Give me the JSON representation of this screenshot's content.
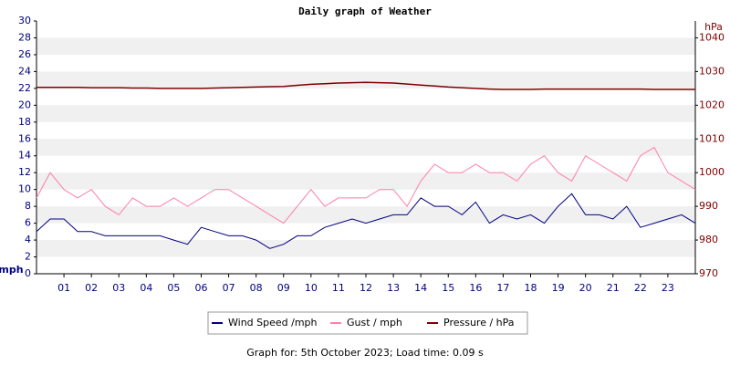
{
  "chart_data": {
    "type": "line",
    "title": "Daily graph of Weather",
    "y_label": "mph",
    "y2_label": "hPa",
    "footer": "Graph for: 5th October 2023; Load time: 0.09 s",
    "x": [
      0,
      0.5,
      1,
      1.5,
      2,
      2.5,
      3,
      3.5,
      4,
      4.5,
      5,
      5.5,
      6,
      6.5,
      7,
      7.5,
      8,
      8.5,
      9,
      9.5,
      10,
      10.5,
      11,
      11.5,
      12,
      12.5,
      13,
      13.5,
      14,
      14.5,
      15,
      15.5,
      16,
      16.5,
      17,
      17.5,
      18,
      18.5,
      19,
      19.5,
      20,
      20.5,
      21,
      21.5,
      22,
      22.5,
      23,
      23.5,
      24
    ],
    "xlim": [
      0,
      24
    ],
    "xticks": [
      {
        "value": 1,
        "label": "01"
      },
      {
        "value": 2,
        "label": "02"
      },
      {
        "value": 3,
        "label": "03"
      },
      {
        "value": 4,
        "label": "04"
      },
      {
        "value": 5,
        "label": "05"
      },
      {
        "value": 6,
        "label": "06"
      },
      {
        "value": 7,
        "label": "07"
      },
      {
        "value": 8,
        "label": "08"
      },
      {
        "value": 9,
        "label": "09"
      },
      10,
      11,
      12,
      13,
      14,
      15,
      16,
      17,
      18,
      19,
      20,
      21,
      22,
      23
    ],
    "ylim": [
      0,
      30
    ],
    "yticks": [
      0,
      2,
      4,
      6,
      8,
      10,
      12,
      14,
      16,
      18,
      20,
      22,
      24,
      26,
      28,
      30
    ],
    "y2lim": [
      970,
      1045
    ],
    "y2ticks": [
      970,
      980,
      990,
      1000,
      1010,
      1020,
      1030,
      1040
    ],
    "bands": true,
    "series": [
      {
        "name": "Wind Speed /mph",
        "color": "#000080",
        "values": [
          5,
          6.5,
          6.5,
          5,
          5,
          4.5,
          4.5,
          4.5,
          4.5,
          4.5,
          4,
          3.5,
          5.5,
          5,
          4.5,
          4.5,
          4,
          3,
          3.5,
          4.5,
          4.5,
          5.5,
          6,
          6.5,
          6,
          6.5,
          7,
          7,
          9,
          8,
          8,
          7,
          8.5,
          6,
          7,
          6.5,
          7,
          6,
          8,
          9.5,
          7,
          7,
          6.5,
          8,
          5.5,
          6,
          6.5,
          7,
          6
        ]
      },
      {
        "name": "Gust / mph",
        "color": "#ff7fa8",
        "values": [
          9,
          12,
          10,
          9,
          10,
          8,
          7,
          9,
          8,
          8,
          9,
          8,
          9,
          10,
          10,
          9,
          8,
          7,
          6,
          8,
          10,
          8,
          9,
          9,
          9,
          10,
          10,
          8,
          11,
          13,
          12,
          12,
          13,
          12,
          12,
          11,
          13,
          14,
          12,
          11,
          14,
          13,
          12,
          11,
          14,
          15,
          12,
          11,
          10
        ]
      },
      {
        "name": "Pressure / hPa",
        "color": "#800000",
        "axis": "y2",
        "values": [
          1025.3,
          1025.3,
          1025.3,
          1025.3,
          1025.2,
          1025.2,
          1025.2,
          1025.1,
          1025.1,
          1025.0,
          1025.0,
          1025.0,
          1025.0,
          1025.1,
          1025.2,
          1025.3,
          1025.4,
          1025.5,
          1025.6,
          1025.9,
          1026.2,
          1026.4,
          1026.6,
          1026.7,
          1026.8,
          1026.7,
          1026.6,
          1026.3,
          1026.0,
          1025.7,
          1025.4,
          1025.2,
          1025.0,
          1024.8,
          1024.7,
          1024.7,
          1024.7,
          1024.8,
          1024.8,
          1024.8,
          1024.8,
          1024.8,
          1024.8,
          1024.8,
          1024.8,
          1024.7,
          1024.7,
          1024.7,
          1024.7
        ]
      }
    ]
  }
}
